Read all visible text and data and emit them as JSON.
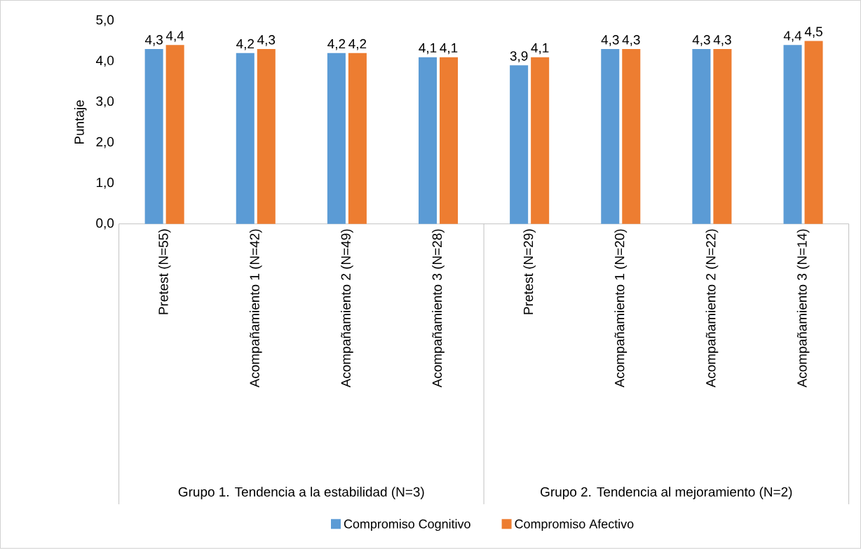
{
  "chart_data": {
    "type": "bar",
    "ylabel": "Puntaje",
    "categories": [
      "Pretest (N=55)",
      "Acompañamiento 1 (N=42)",
      "Acompañamiento 2 (N=49)",
      "Acompañamiento 3 (N=28)",
      "Pretest (N=29)",
      "Acompañamiento 1 (N=20)",
      "Acompañamiento 2 (N=22)",
      "Acompañamiento 3 (N=14)"
    ],
    "series": [
      {
        "name": "Compromiso Cognitivo",
        "color": "#5b9bd5",
        "values": [
          4.3,
          4.2,
          4.2,
          4.1,
          3.9,
          4.3,
          4.3,
          4.4
        ],
        "value_labels": [
          "4,3",
          "4,2",
          "4,2",
          "4,1",
          "3,9",
          "4,3",
          "4,3",
          "4,4"
        ]
      },
      {
        "name": "Compromiso Afectivo",
        "color": "#ed7d31",
        "values": [
          4.4,
          4.3,
          4.2,
          4.1,
          4.1,
          4.3,
          4.3,
          4.5
        ],
        "value_labels": [
          "4,4",
          "4,3",
          "4,2",
          "4,1",
          "4,1",
          "4,3",
          "4,3",
          "4,5"
        ]
      }
    ],
    "ylim": [
      0,
      5
    ],
    "yticks": [
      {
        "value": 0,
        "label": "0,0"
      },
      {
        "value": 1,
        "label": "1,0"
      },
      {
        "value": 2,
        "label": "2,0"
      },
      {
        "value": 3,
        "label": "3,0"
      },
      {
        "value": 4,
        "label": "4,0"
      },
      {
        "value": 5,
        "label": "5,0"
      }
    ],
    "annotations": [
      "Grupo 1. Tendencia a la estabilidad (N=3)",
      "Grupo 2. Tendencia al mejoramiento (N=2)"
    ],
    "legend": "bottom"
  }
}
